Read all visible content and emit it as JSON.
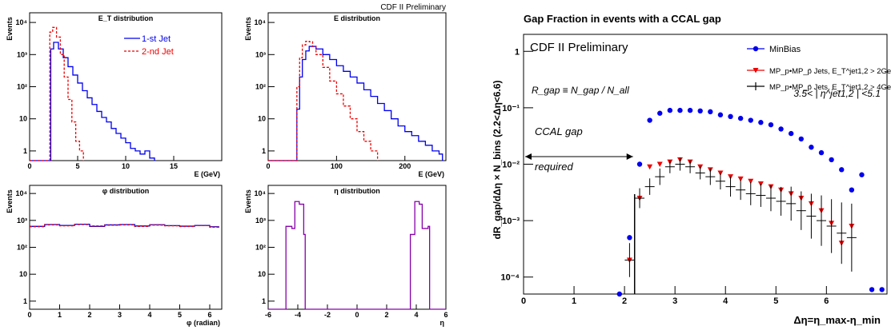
{
  "page": {
    "bg": "#ffffff"
  },
  "colors": {
    "blue": "#0000ee",
    "red": "#ee0000",
    "black": "#000000",
    "purple": "#8800aa"
  },
  "chart_data": [
    {
      "id": "et",
      "type": "line",
      "title": "E_T distribution",
      "xlabel": "E   (GeV)",
      "ylabel": "Events",
      "xlim": [
        0,
        20
      ],
      "ylim": [
        0.5,
        20000
      ],
      "yscale": "log",
      "xticks": [
        0,
        5,
        10,
        15
      ],
      "xticklabels": [
        "0",
        "5",
        "10",
        "15"
      ],
      "legend_placement": "top-right",
      "series": [
        {
          "name": "1-st Jet",
          "color": "#0000ee",
          "dash": "solid",
          "points": [
            [
              0,
              0
            ],
            [
              2,
              0
            ],
            [
              2.2,
              1500
            ],
            [
              2.5,
              2400
            ],
            [
              3,
              1500
            ],
            [
              3.5,
              800
            ],
            [
              4,
              420
            ],
            [
              4.5,
              230
            ],
            [
              5,
              130
            ],
            [
              5.5,
              75
            ],
            [
              6,
              45
            ],
            [
              6.5,
              28
            ],
            [
              7,
              17
            ],
            [
              7.5,
              11
            ],
            [
              8,
              8
            ],
            [
              8.5,
              5
            ],
            [
              9,
              3.5
            ],
            [
              9.5,
              2.5
            ],
            [
              10,
              1.8
            ],
            [
              10.5,
              1.2
            ],
            [
              11,
              1
            ],
            [
              11.5,
              0.8
            ],
            [
              12,
              1
            ],
            [
              12.5,
              0.6
            ],
            [
              13,
              0
            ]
          ]
        },
        {
          "name": "2-nd Jet",
          "color": "#ee0000",
          "dash": "dashed",
          "points": [
            [
              0,
              0
            ],
            [
              2,
              0
            ],
            [
              2.1,
              5000
            ],
            [
              2.4,
              7000
            ],
            [
              2.8,
              3500
            ],
            [
              3.2,
              1000
            ],
            [
              3.6,
              200
            ],
            [
              4,
              40
            ],
            [
              4.4,
              8
            ],
            [
              4.8,
              2
            ],
            [
              5.2,
              1
            ],
            [
              5.6,
              0
            ]
          ]
        }
      ]
    },
    {
      "id": "e",
      "type": "line",
      "title": "E distribution",
      "xlabel": "E (GeV)",
      "ylabel": "Events",
      "xlim": [
        0,
        260
      ],
      "ylim": [
        0.5,
        20000
      ],
      "yscale": "log",
      "xticks": [
        0,
        100,
        200
      ],
      "xticklabels": [
        "0",
        "100",
        "200"
      ],
      "series": [
        {
          "name": "",
          "color": "#0000ee",
          "dash": "solid",
          "points": [
            [
              0,
              0
            ],
            [
              40,
              0
            ],
            [
              42,
              20
            ],
            [
              46,
              200
            ],
            [
              50,
              700
            ],
            [
              55,
              1300
            ],
            [
              60,
              1800
            ],
            [
              70,
              1500
            ],
            [
              80,
              1000
            ],
            [
              90,
              700
            ],
            [
              100,
              450
            ],
            [
              110,
              300
            ],
            [
              120,
              200
            ],
            [
              130,
              130
            ],
            [
              140,
              80
            ],
            [
              150,
              50
            ],
            [
              160,
              30
            ],
            [
              170,
              18
            ],
            [
              180,
              10
            ],
            [
              190,
              6
            ],
            [
              200,
              4
            ],
            [
              210,
              3
            ],
            [
              220,
              2
            ],
            [
              230,
              1.5
            ],
            [
              240,
              1
            ],
            [
              250,
              0.8
            ],
            [
              255,
              0
            ]
          ]
        },
        {
          "name": "",
          "color": "#ee0000",
          "dash": "dashed",
          "points": [
            [
              0,
              0
            ],
            [
              40,
              0
            ],
            [
              42,
              100
            ],
            [
              46,
              800
            ],
            [
              50,
              2000
            ],
            [
              55,
              2600
            ],
            [
              60,
              2500
            ],
            [
              65,
              1800
            ],
            [
              70,
              1000
            ],
            [
              80,
              400
            ],
            [
              90,
              150
            ],
            [
              100,
              60
            ],
            [
              110,
              25
            ],
            [
              120,
              10
            ],
            [
              130,
              4
            ],
            [
              140,
              2
            ],
            [
              150,
              1
            ],
            [
              160,
              0
            ]
          ]
        }
      ]
    },
    {
      "id": "phi",
      "type": "line",
      "title": "φ distribution",
      "xlabel": "φ (radian)",
      "ylabel": "Events",
      "xlim": [
        0,
        6.4
      ],
      "ylim": [
        0.5,
        20000
      ],
      "yscale": "log",
      "xticks": [
        0,
        1,
        2,
        3,
        4,
        5,
        6
      ],
      "xticklabels": [
        "0",
        "1",
        "2",
        "3",
        "4",
        "5",
        "6"
      ],
      "series": [
        {
          "name": "",
          "color": "#0000ee",
          "dash": "solid",
          "points": [
            [
              0,
              600
            ],
            [
              0.5,
              700
            ],
            [
              1,
              650
            ],
            [
              1.5,
              720
            ],
            [
              2,
              600
            ],
            [
              2.5,
              680
            ],
            [
              3,
              700
            ],
            [
              3.5,
              620
            ],
            [
              4,
              690
            ],
            [
              4.5,
              640
            ],
            [
              5,
              610
            ],
            [
              5.5,
              650
            ],
            [
              6,
              580
            ],
            [
              6.3,
              600
            ]
          ]
        },
        {
          "name": "",
          "color": "#ee0000",
          "dash": "dashed",
          "points": [
            [
              0,
              580
            ],
            [
              0.5,
              680
            ],
            [
              1,
              630
            ],
            [
              1.5,
              700
            ],
            [
              2,
              620
            ],
            [
              2.5,
              660
            ],
            [
              3,
              680
            ],
            [
              3.5,
              600
            ],
            [
              4,
              670
            ],
            [
              4.5,
              630
            ],
            [
              5,
              590
            ],
            [
              5.5,
              640
            ],
            [
              6,
              560
            ],
            [
              6.3,
              580
            ]
          ]
        }
      ]
    },
    {
      "id": "eta",
      "type": "line",
      "title": "η distribution",
      "xlabel": "η",
      "ylabel": "Events",
      "xlim": [
        -6,
        6
      ],
      "ylim": [
        0.5,
        20000
      ],
      "yscale": "log",
      "xticks": [
        -6,
        -4,
        -2,
        0,
        2,
        4,
        6
      ],
      "xticklabels": [
        "-6",
        "-4",
        "-2",
        "0",
        "2",
        "4",
        "6"
      ],
      "series": [
        {
          "name": "",
          "color": "#8800aa",
          "dash": "solid",
          "points": [
            [
              -6,
              0
            ],
            [
              -4.9,
              0
            ],
            [
              -4.8,
              600
            ],
            [
              -4.4,
              500
            ],
            [
              -4.2,
              5000
            ],
            [
              -3.9,
              4000
            ],
            [
              -3.6,
              300
            ],
            [
              -3.5,
              0
            ],
            [
              3.5,
              0
            ],
            [
              3.6,
              300
            ],
            [
              3.9,
              5000
            ],
            [
              4.2,
              4000
            ],
            [
              4.4,
              500
            ],
            [
              4.8,
              600
            ],
            [
              4.9,
              0
            ],
            [
              6,
              0
            ]
          ]
        }
      ]
    },
    {
      "id": "gap",
      "type": "scatter",
      "title": "Gap Fraction in events with a CCAL gap",
      "label_prelim": "CDF II Preliminary",
      "xlabel": "Δη=η_max-η_min",
      "ylabel": "dR_gap/dΔη × N_bins (2.2<Δη<6.6)",
      "xlim": [
        0,
        7.2
      ],
      "ylim": [
        5e-05,
        2
      ],
      "yscale": "log",
      "xticks": [
        0,
        1,
        2,
        3,
        4,
        5,
        6
      ],
      "xticklabels": [
        "0",
        "1",
        "2",
        "3",
        "4",
        "5",
        "6"
      ],
      "yticks": [
        0.0001,
        0.001,
        0.01,
        0.1,
        1
      ],
      "yticklabels": [
        "10⁻⁴",
        "10⁻³",
        "10⁻²",
        "10⁻¹",
        "1"
      ],
      "annotations": {
        "rgap": "R_gap ≡ N_gap / N_all",
        "eta_range": "3.5< | η^jet1,2 | <5.1",
        "ccal_gap": "CCAL gap",
        "ccal_required": "required"
      },
      "legend_placement": "top-right",
      "series": [
        {
          "name": "MinBias",
          "color": "#0000ee",
          "marker": "circle",
          "x": [
            1.9,
            2.1,
            2.3,
            2.5,
            2.7,
            2.9,
            3.1,
            3.3,
            3.5,
            3.7,
            3.9,
            4.1,
            4.3,
            4.5,
            4.7,
            4.9,
            5.1,
            5.3,
            5.5,
            5.7,
            5.9,
            6.1,
            6.3,
            6.5,
            6.7,
            6.9,
            7.1
          ],
          "y": [
            5e-05,
            0.0005,
            0.01,
            0.06,
            0.08,
            0.09,
            0.09,
            0.09,
            0.088,
            0.085,
            0.075,
            0.07,
            0.065,
            0.06,
            0.055,
            0.05,
            0.042,
            0.035,
            0.028,
            0.02,
            0.016,
            0.012,
            0.008,
            0.0035,
            0.0065,
            6e-05,
            6e-05
          ]
        },
        {
          "name": "MP_p•MP_p̄ Jets, E_T^jet1,2 > 2GeV",
          "color": "#ee0000",
          "marker": "triangle-down",
          "x": [
            2.1,
            2.3,
            2.5,
            2.7,
            2.9,
            3.1,
            3.3,
            3.5,
            3.7,
            3.9,
            4.1,
            4.3,
            4.5,
            4.7,
            4.9,
            5.1,
            5.3,
            5.5,
            5.7,
            5.9,
            6.1,
            6.3,
            6.5
          ],
          "y": [
            0.0002,
            0.0025,
            0.009,
            0.01,
            0.011,
            0.012,
            0.011,
            0.009,
            0.008,
            0.007,
            0.006,
            0.0055,
            0.005,
            0.0045,
            0.004,
            0.0035,
            0.003,
            0.0025,
            0.002,
            0.0015,
            0.0009,
            0.0004,
            0.0008
          ]
        },
        {
          "name": "MP_p•MP_p̄ Jets, E_T^jet1,2 > 4GeV",
          "color": "#000000",
          "marker": "cross",
          "x": [
            2.1,
            2.3,
            2.5,
            2.7,
            2.9,
            3.1,
            3.3,
            3.5,
            3.7,
            3.9,
            4.1,
            4.3,
            4.5,
            4.7,
            4.9,
            5.1,
            5.3,
            5.5,
            5.7,
            5.9,
            6.1,
            6.3,
            6.5
          ],
          "y": [
            0.0002,
            0.0025,
            0.004,
            0.006,
            0.009,
            0.01,
            0.009,
            0.007,
            0.006,
            0.005,
            0.004,
            0.0035,
            0.003,
            0.0028,
            0.0025,
            0.0022,
            0.002,
            0.0015,
            0.0012,
            0.001,
            0.0008,
            0.0006,
            0.0005
          ],
          "yerr_factor": [
            2,
            1.5,
            1.4,
            1.4,
            1.3,
            1.3,
            1.3,
            1.3,
            1.4,
            1.4,
            1.5,
            1.5,
            1.6,
            1.6,
            1.7,
            1.8,
            2,
            2.2,
            2.5,
            2.8,
            3,
            3.5,
            4
          ]
        }
      ]
    }
  ],
  "labels": {
    "cdf_prelim_small": "CDF II Preliminary"
  }
}
